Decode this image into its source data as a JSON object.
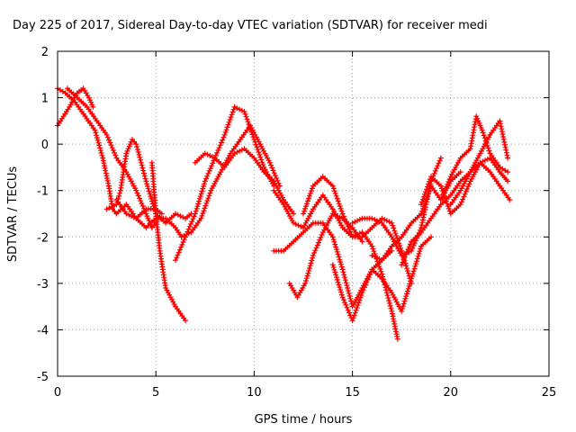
{
  "chart_data": {
    "type": "scatter",
    "title": "Day 225 of 2017, Sidereal Day-to-day VTEC variation (SDTVAR) for receiver medi",
    "xlabel": "GPS time / hours",
    "ylabel": "SDTVAR / TECUs",
    "xlim": [
      0,
      25
    ],
    "ylim": [
      -5,
      2
    ],
    "x_ticks": [
      0,
      5,
      10,
      15,
      20,
      25
    ],
    "y_ticks": [
      -5,
      -4,
      -3,
      -2,
      -1,
      0,
      1,
      2
    ],
    "x_tick_labels": [
      "0",
      "5",
      "10",
      "15",
      "20",
      "25"
    ],
    "y_tick_labels": [
      "-5",
      "-4",
      "-3",
      "-2",
      "-1",
      "0",
      "1",
      "2"
    ],
    "grid": true,
    "legend": "none",
    "marker": "+",
    "color": "#ff0000",
    "series": [
      {
        "name": "track-1",
        "x": [
          0.0,
          0.4,
          0.9,
          1.4,
          1.9,
          2.3,
          2.6,
          2.8,
          3.0
        ],
        "y": [
          1.2,
          1.1,
          0.9,
          0.6,
          0.3,
          -0.3,
          -0.9,
          -1.4,
          -1.5
        ]
      },
      {
        "name": "track-2",
        "x": [
          0.0,
          0.3,
          0.6,
          1.0,
          1.3,
          1.6,
          1.8
        ],
        "y": [
          0.4,
          0.6,
          0.8,
          1.1,
          1.2,
          1.0,
          0.8
        ]
      },
      {
        "name": "track-3",
        "x": [
          0.5,
          1.0,
          1.5,
          2.0,
          2.5,
          3.0,
          3.5,
          4.0,
          4.5,
          4.8,
          5.0
        ],
        "y": [
          1.2,
          1.0,
          0.8,
          0.5,
          0.2,
          -0.3,
          -0.6,
          -1.0,
          -1.5,
          -1.8,
          -1.7
        ]
      },
      {
        "name": "track-4",
        "x": [
          2.5,
          3.0,
          3.2,
          3.5,
          3.8,
          4.0,
          4.5,
          5.0,
          5.5,
          6.0,
          6.5,
          6.8
        ],
        "y": [
          -1.4,
          -1.3,
          -1.0,
          -0.2,
          0.1,
          0.0,
          -0.8,
          -1.5,
          -1.7,
          -1.5,
          -1.6,
          -1.5
        ]
      },
      {
        "name": "track-5",
        "x": [
          3.0,
          3.5,
          4.0,
          4.5,
          5.0,
          5.3
        ],
        "y": [
          -1.2,
          -1.5,
          -1.6,
          -1.4,
          -1.4,
          -1.5
        ]
      },
      {
        "name": "track-6",
        "x": [
          4.8,
          5.0,
          5.2,
          5.5,
          6.0,
          6.5
        ],
        "y": [
          -0.4,
          -1.5,
          -2.3,
          -3.1,
          -3.5,
          -3.8
        ]
      },
      {
        "name": "track-7",
        "x": [
          3.0,
          3.5,
          4.0,
          4.5,
          5.0,
          5.5,
          6.0,
          6.3
        ],
        "y": [
          -1.5,
          -1.3,
          -1.6,
          -1.8,
          -1.6,
          -1.6,
          -1.8,
          -2.0
        ]
      },
      {
        "name": "track-8",
        "x": [
          6.0,
          6.5,
          7.0,
          7.5,
          8.0,
          8.5,
          9.0,
          9.5,
          10.0,
          10.5,
          11.0
        ],
        "y": [
          -2.5,
          -2.0,
          -1.5,
          -0.8,
          -0.3,
          0.2,
          0.8,
          0.7,
          0.1,
          -0.5,
          -0.9
        ]
      },
      {
        "name": "track-9",
        "x": [
          6.3,
          6.8,
          7.3,
          7.8,
          8.3,
          8.8,
          9.3,
          9.8,
          10.3,
          10.8,
          11.3
        ],
        "y": [
          -2.0,
          -1.9,
          -1.6,
          -1.0,
          -0.6,
          -0.2,
          0.1,
          0.4,
          0.0,
          -0.4,
          -0.9
        ]
      },
      {
        "name": "track-10",
        "x": [
          7.0,
          7.5,
          8.0,
          8.5,
          9.0,
          9.5,
          10.0,
          10.5,
          11.0,
          11.5,
          12.0
        ],
        "y": [
          -0.4,
          -0.2,
          -0.3,
          -0.5,
          -0.2,
          -0.1,
          -0.3,
          -0.6,
          -0.8,
          -1.2,
          -1.5
        ]
      },
      {
        "name": "track-11",
        "x": [
          11.0,
          11.5,
          12.0,
          12.5,
          13.0,
          13.5,
          14.0,
          14.5,
          15.0,
          15.5,
          16.0,
          16.5,
          17.0,
          17.3
        ],
        "y": [
          -1.0,
          -1.3,
          -1.7,
          -1.8,
          -1.4,
          -1.1,
          -1.4,
          -1.8,
          -2.0,
          -1.9,
          -2.2,
          -2.8,
          -3.6,
          -4.2
        ]
      },
      {
        "name": "track-12",
        "x": [
          11.0,
          11.5,
          12.0,
          12.5,
          13.0,
          13.5,
          14.0,
          14.5,
          15.0,
          15.5,
          16.0,
          16.5,
          17.0
        ],
        "y": [
          -2.3,
          -2.3,
          -2.1,
          -1.9,
          -1.7,
          -1.7,
          -2.0,
          -2.7,
          -3.5,
          -3.1,
          -2.7,
          -2.5,
          -2.3
        ]
      },
      {
        "name": "track-13",
        "x": [
          11.8,
          12.2,
          12.6,
          13.0,
          13.5,
          14.0,
          14.5,
          15.0,
          15.5
        ],
        "y": [
          -3.0,
          -3.3,
          -3.0,
          -2.4,
          -1.9,
          -1.5,
          -1.6,
          -1.8,
          -2.1
        ]
      },
      {
        "name": "track-14",
        "x": [
          12.5,
          13.0,
          13.5,
          14.0,
          14.5,
          15.0,
          15.5,
          16.0,
          16.5,
          17.0,
          17.5,
          18.0
        ],
        "y": [
          -1.5,
          -0.9,
          -0.7,
          -0.9,
          -1.5,
          -2.0,
          -2.0,
          -1.8,
          -1.6,
          -1.7,
          -2.3,
          -3.0
        ]
      },
      {
        "name": "track-15",
        "x": [
          14.0,
          14.5,
          15.0,
          15.5,
          16.0,
          16.5,
          17.0,
          17.5,
          18.0,
          18.5,
          19.0
        ],
        "y": [
          -2.6,
          -3.3,
          -3.8,
          -3.2,
          -2.7,
          -2.9,
          -3.2,
          -3.6,
          -2.9,
          -2.2,
          -2.0
        ]
      },
      {
        "name": "track-16",
        "x": [
          15.0,
          15.5,
          16.0,
          16.5,
          17.0,
          17.5,
          18.0,
          18.5,
          19.0,
          19.5
        ],
        "y": [
          -1.7,
          -1.6,
          -1.6,
          -1.7,
          -2.0,
          -2.4,
          -2.3,
          -1.8,
          -0.8,
          -0.3
        ]
      },
      {
        "name": "track-17",
        "x": [
          16.0,
          16.5,
          17.0,
          17.5,
          18.0,
          18.5,
          19.0,
          19.5,
          20.0,
          20.5
        ],
        "y": [
          -2.4,
          -2.5,
          -2.2,
          -2.0,
          -1.7,
          -1.5,
          -0.9,
          -1.2,
          -0.8,
          -0.6
        ]
      },
      {
        "name": "track-18",
        "x": [
          17.5,
          18.0,
          18.5,
          19.0,
          19.5,
          20.0,
          20.5,
          21.0,
          21.5,
          22.0,
          22.5,
          23.0
        ],
        "y": [
          -2.6,
          -2.1,
          -1.9,
          -1.6,
          -1.3,
          -1.1,
          -0.8,
          -0.6,
          -0.4,
          -0.6,
          -0.9,
          -1.2
        ]
      },
      {
        "name": "track-19",
        "x": [
          18.5,
          19.0,
          19.5,
          20.0,
          20.5,
          21.0,
          21.5,
          22.0,
          22.5,
          22.9
        ],
        "y": [
          -1.3,
          -0.7,
          -0.9,
          -1.5,
          -1.3,
          -0.8,
          -0.4,
          -0.3,
          -0.6,
          -0.8
        ]
      },
      {
        "name": "track-20",
        "x": [
          19.5,
          20.0,
          20.5,
          21.0,
          21.3,
          21.6,
          22.0,
          22.5,
          22.9
        ],
        "y": [
          -1.2,
          -0.7,
          -0.3,
          -0.1,
          0.6,
          0.3,
          -0.2,
          -0.5,
          -0.6
        ]
      },
      {
        "name": "track-21",
        "x": [
          20.0,
          20.5,
          21.0,
          21.5,
          22.0,
          22.5,
          22.9
        ],
        "y": [
          -1.3,
          -1.0,
          -0.6,
          -0.2,
          0.2,
          0.5,
          -0.3
        ]
      }
    ]
  }
}
